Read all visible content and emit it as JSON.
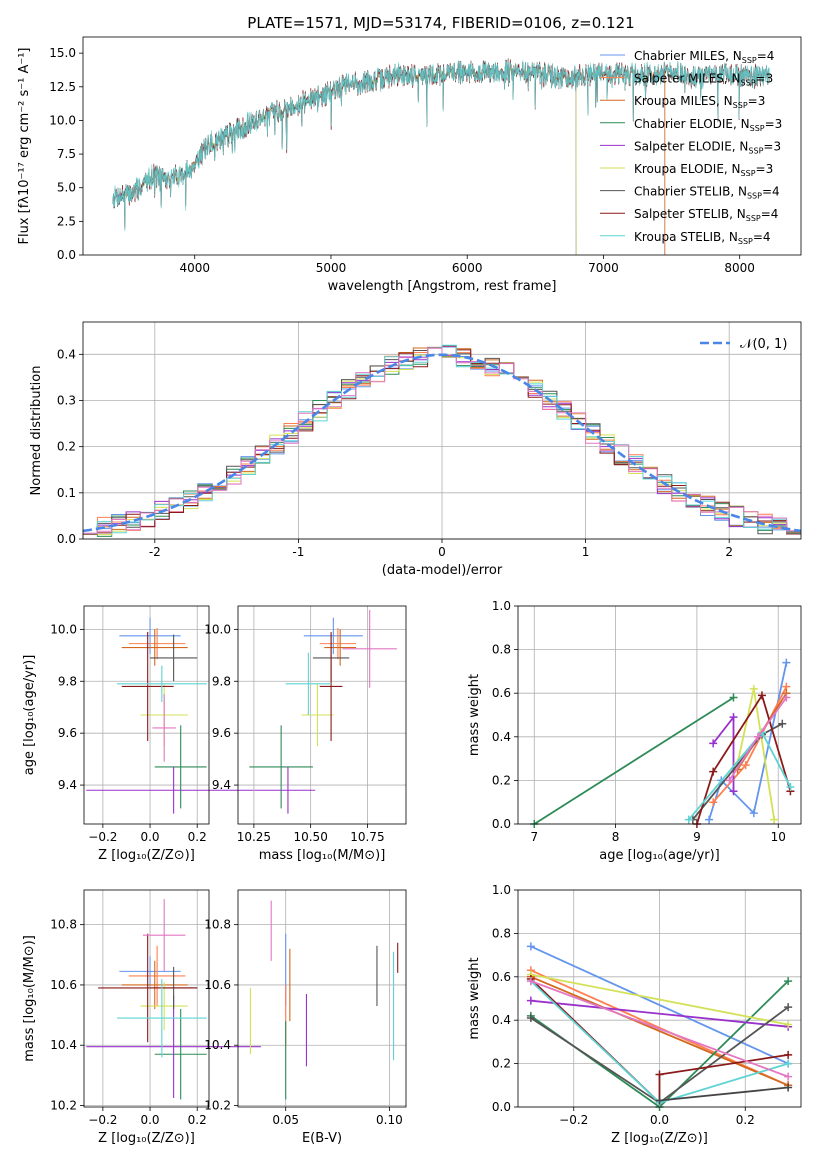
{
  "figure_title": "PLATE=1571, MJD=53174, FIBERID=0106, z=0.121",
  "chart_data": [
    {
      "id": "spectrum",
      "type": "line",
      "title": "PLATE=1571, MJD=53174, FIBERID=0106, z=0.121",
      "xlabel": "wavelength [Angstrom, rest frame]",
      "ylabel": "Flux [fλ10⁻¹⁷ erg cm⁻² s⁻¹ A⁻¹]",
      "xlim": [
        3180,
        8450
      ],
      "ylim": [
        0,
        16.2
      ],
      "xticks": [
        4000,
        5000,
        6000,
        7000,
        8000
      ],
      "yticks": [
        0.0,
        2.5,
        5.0,
        7.5,
        10.0,
        12.5,
        15.0
      ],
      "grid": false,
      "legend_position": "top-right",
      "data_range": [
        3400,
        8220
      ],
      "continuum": [
        [
          3400,
          4.3
        ],
        [
          3550,
          4.6
        ],
        [
          3700,
          6.0
        ],
        [
          3800,
          5.6
        ],
        [
          3950,
          6.2
        ],
        [
          4100,
          8.2
        ],
        [
          4300,
          9.2
        ],
        [
          4500,
          10.3
        ],
        [
          4700,
          11.0
        ],
        [
          4900,
          11.7
        ],
        [
          5100,
          12.6
        ],
        [
          5300,
          12.9
        ],
        [
          5500,
          13.4
        ],
        [
          5700,
          13.3
        ],
        [
          5900,
          13.6
        ],
        [
          6100,
          13.5
        ],
        [
          6300,
          13.7
        ],
        [
          6500,
          13.5
        ],
        [
          6700,
          13.2
        ],
        [
          6900,
          13.4
        ],
        [
          7100,
          13.5
        ],
        [
          7300,
          13.4
        ],
        [
          7500,
          13.6
        ],
        [
          7700,
          13.2
        ],
        [
          7900,
          13.4
        ],
        [
          8100,
          13.3
        ],
        [
          8220,
          13.2
        ]
      ],
      "series": [
        {
          "name": "Chabrier MILES, N$_{SSP}$=4",
          "label_main": "Chabrier MILES, N",
          "label_sub": "SSP",
          "label_end": "=4",
          "color": "#6495ed",
          "end": 7450
        },
        {
          "name": "Salpeter MILES, N$_{SSP}$=3",
          "label_main": "Salpeter MILES, N",
          "label_sub": "SSP",
          "label_end": "=3",
          "color": "#ff7f50",
          "end": 7450
        },
        {
          "name": "Kroupa MILES, N$_{SSP}$=3",
          "label_main": "Kroupa MILES, N",
          "label_sub": "SSP",
          "label_end": "=3",
          "color": "#d2691e",
          "end": 7450
        },
        {
          "name": "Chabrier ELODIE, N$_{SSP}$=3",
          "label_main": "Chabrier ELODIE, N",
          "label_sub": "SSP",
          "label_end": "=3",
          "color": "#2e8b57",
          "end": 6800
        },
        {
          "name": "Salpeter ELODIE, N$_{SSP}$=3",
          "label_main": "Salpeter ELODIE, N",
          "label_sub": "SSP",
          "label_end": "=3",
          "color": "#9932cc",
          "end": 6800
        },
        {
          "name": "Kroupa ELODIE, N$_{SSP}$=3",
          "label_main": "Kroupa ELODIE, N",
          "label_sub": "SSP",
          "label_end": "=3",
          "color": "#d4e157",
          "end": 6800
        },
        {
          "name": "Chabrier STELIB, N$_{SSP}$=4",
          "label_main": "Chabrier STELIB, N",
          "label_sub": "SSP",
          "label_end": "=4",
          "color": "#555555",
          "end": 8220
        },
        {
          "name": "Salpeter STELIB, N$_{SSP}$=4",
          "label_main": "Salpeter STELIB, N",
          "label_sub": "SSP",
          "label_end": "=4",
          "color": "#8b1a1a",
          "end": 8220
        },
        {
          "name": "Kroupa STELIB, N$_{SSP}$=4",
          "label_main": "Kroupa STELIB, N",
          "label_sub": "SSP",
          "label_end": "=4",
          "color": "#5fd3d3",
          "end": 8220
        }
      ]
    },
    {
      "id": "residuals",
      "type": "line",
      "xlabel": "(data-model)/error",
      "ylabel": "Normed distribution",
      "xlim": [
        -2.5,
        2.5
      ],
      "ylim": [
        0,
        0.47
      ],
      "xticks": [
        -2,
        -1,
        0,
        1,
        2
      ],
      "yticks": [
        0.0,
        0.1,
        0.2,
        0.3,
        0.4
      ],
      "grid": true,
      "legend_position": "top-right",
      "reference_curve": {
        "name": "$\\mathcal{N}(0,1)$",
        "label": "𝒩(0, 1)",
        "color": "#4a86e8",
        "mean": 0,
        "sigma": 1
      },
      "bin_width": 0.1,
      "histogram_series_colors": [
        "#6495ed",
        "#ff7f50",
        "#d2691e",
        "#2e8b57",
        "#9932cc",
        "#d4e157",
        "#555555",
        "#8b1a1a",
        "#5fd3d3",
        "#e377c2"
      ]
    },
    {
      "id": "age_vs_Z",
      "type": "scatter",
      "xlabel": "Z [log₁₀(Z/Z⊙)]",
      "ylabel": "age  [log₁₀(age/yr)]",
      "xlim": [
        -0.28,
        0.25
      ],
      "ylim": [
        9.25,
        10.09
      ],
      "xticks": [
        -0.2,
        0.0,
        0.2
      ],
      "xtick_labels": [
        "−0.2",
        "0.0",
        "0.2"
      ],
      "yticks": [
        9.4,
        9.6,
        9.8,
        10.0
      ],
      "grid": true,
      "points": [
        {
          "x": 0.0,
          "y": 9.975,
          "xerr": 0.13,
          "yerr": 0.07,
          "color": "#6495ed"
        },
        {
          "x": 0.03,
          "y": 9.945,
          "xerr": 0.12,
          "yerr": 0.06,
          "color": "#ff7f50"
        },
        {
          "x": 0.02,
          "y": 9.93,
          "xerr": 0.14,
          "yerr": 0.07,
          "color": "#d2691e"
        },
        {
          "x": 0.13,
          "y": 9.47,
          "xerr": 0.11,
          "yerr": 0.16,
          "color": "#2e8b57"
        },
        {
          "x": 0.1,
          "y": 9.38,
          "xerr": 0.37,
          "yerr": 0.09,
          "color": "#9932cc"
        },
        {
          "x": 0.06,
          "y": 9.67,
          "xerr": 0.1,
          "yerr": 0.12,
          "color": "#d4e157"
        },
        {
          "x": 0.1,
          "y": 9.89,
          "xerr": 0.1,
          "yerr": 0.09,
          "color": "#555555"
        },
        {
          "x": -0.01,
          "y": 9.78,
          "xerr": 0.11,
          "yerr": 0.21,
          "color": "#8b1a1a"
        },
        {
          "x": 0.05,
          "y": 9.79,
          "xerr": 0.19,
          "yerr": 0.07,
          "color": "#5fd3d3"
        },
        {
          "x": 0.06,
          "y": 9.62,
          "xerr": 0.05,
          "yerr": 0.13,
          "color": "#e377c2"
        }
      ]
    },
    {
      "id": "age_vs_mass",
      "type": "scatter",
      "xlabel": "mass [log₁₀(M/M⊙)]",
      "ylabel": "",
      "xlim": [
        10.18,
        10.92
      ],
      "ylim": [
        9.25,
        10.09
      ],
      "xticks": [
        10.25,
        10.5,
        10.75
      ],
      "xtick_labels": [
        "10.25",
        "10.50",
        "10.75"
      ],
      "yticks": [
        9.4,
        9.6,
        9.8,
        10.0
      ],
      "grid": true,
      "points": [
        {
          "x": 10.6,
          "y": 9.975,
          "xerr": 0.13,
          "yerr": 0.07,
          "color": "#6495ed"
        },
        {
          "x": 10.62,
          "y": 9.945,
          "xerr": 0.08,
          "yerr": 0.06,
          "color": "#ff7f50"
        },
        {
          "x": 10.63,
          "y": 9.93,
          "xerr": 0.07,
          "yerr": 0.07,
          "color": "#d2691e"
        },
        {
          "x": 10.37,
          "y": 9.47,
          "xerr": 0.14,
          "yerr": 0.16,
          "color": "#2e8b57"
        },
        {
          "x": 10.4,
          "y": 9.38,
          "xerr": 0.12,
          "yerr": 0.09,
          "color": "#9932cc"
        },
        {
          "x": 10.53,
          "y": 9.67,
          "xerr": 0.07,
          "yerr": 0.12,
          "color": "#d4e157"
        },
        {
          "x": 10.59,
          "y": 9.89,
          "xerr": 0.08,
          "yerr": 0.09,
          "color": "#555555"
        },
        {
          "x": 10.59,
          "y": 9.78,
          "xerr": 0.05,
          "yerr": 0.21,
          "color": "#8b1a1a"
        },
        {
          "x": 10.49,
          "y": 9.79,
          "xerr": 0.1,
          "yerr": 0.12,
          "color": "#5fd3d3"
        },
        {
          "x": 10.76,
          "y": 9.925,
          "xerr": 0.12,
          "yerr": 0.15,
          "color": "#e377c2"
        }
      ]
    },
    {
      "id": "weight_vs_age",
      "type": "line",
      "xlabel": "age  [log₁₀(age/yr)]",
      "ylabel": "mass weight",
      "xlim": [
        6.8,
        10.28
      ],
      "ylim": [
        0,
        1.0
      ],
      "xticks": [
        7,
        8,
        9,
        10
      ],
      "yticks": [
        0.0,
        0.2,
        0.4,
        0.6,
        0.8,
        1.0
      ],
      "grid": true,
      "series": [
        {
          "color": "#6495ed",
          "x": [
            9.15,
            9.3,
            9.7,
            10.1
          ],
          "y": [
            0.02,
            0.2,
            0.05,
            0.74
          ]
        },
        {
          "color": "#ff7f50",
          "x": [
            9.2,
            9.6,
            10.1
          ],
          "y": [
            0.1,
            0.27,
            0.63
          ]
        },
        {
          "color": "#d2691e",
          "x": [
            9.5,
            10.1
          ],
          "y": [
            0.25,
            0.6
          ]
        },
        {
          "color": "#2e8b57",
          "x": [
            7.0,
            9.45
          ],
          "y": [
            0.0,
            0.58
          ]
        },
        {
          "color": "#9932cc",
          "x": [
            9.2,
            9.45,
            9.45
          ],
          "y": [
            0.37,
            0.49,
            0.15
          ]
        },
        {
          "color": "#d4e157",
          "x": [
            9.5,
            9.7,
            9.95
          ],
          "y": [
            0.28,
            0.62,
            0.02
          ]
        },
        {
          "color": "#555555",
          "x": [
            8.95,
            9.8,
            10.05
          ],
          "y": [
            0.02,
            0.41,
            0.46
          ]
        },
        {
          "color": "#8b1a1a",
          "x": [
            9.0,
            9.2,
            9.8,
            10.15
          ],
          "y": [
            0.0,
            0.24,
            0.59,
            0.15
          ]
        },
        {
          "color": "#5fd3d3",
          "x": [
            8.9,
            9.8,
            10.15
          ],
          "y": [
            0.02,
            0.42,
            0.17
          ]
        },
        {
          "color": "#e377c2",
          "x": [
            9.4,
            9.75,
            10.1
          ],
          "y": [
            0.2,
            0.4,
            0.58
          ]
        }
      ]
    },
    {
      "id": "mass_vs_Z",
      "type": "scatter",
      "xlabel": "Z [log₁₀(Z/Z⊙)]",
      "ylabel": "mass [log₁₀(M/M⊙)]",
      "xlim": [
        -0.28,
        0.25
      ],
      "ylim": [
        10.195,
        10.915
      ],
      "xticks": [
        -0.2,
        0.0,
        0.2
      ],
      "xtick_labels": [
        "−0.2",
        "0.0",
        "0.2"
      ],
      "yticks": [
        10.2,
        10.4,
        10.6,
        10.8
      ],
      "grid": true,
      "points": [
        {
          "x": 0.0,
          "y": 10.645,
          "xerr": 0.13,
          "yerr": 0.05,
          "color": "#6495ed"
        },
        {
          "x": 0.03,
          "y": 10.63,
          "xerr": 0.12,
          "yerr": 0.1,
          "color": "#ff7f50"
        },
        {
          "x": 0.02,
          "y": 10.6,
          "xerr": 0.14,
          "yerr": 0.08,
          "color": "#d2691e"
        },
        {
          "x": 0.13,
          "y": 10.37,
          "xerr": 0.11,
          "yerr": 0.15,
          "color": "#2e8b57"
        },
        {
          "x": 0.1,
          "y": 10.395,
          "xerr": 0.37,
          "yerr": 0.17,
          "color": "#9932cc"
        },
        {
          "x": 0.06,
          "y": 10.53,
          "xerr": 0.1,
          "yerr": 0.08,
          "color": "#d4e157"
        },
        {
          "x": 0.1,
          "y": 10.59,
          "xerr": 0.1,
          "yerr": 0.07,
          "color": "#555555"
        },
        {
          "x": -0.01,
          "y": 10.59,
          "xerr": 0.21,
          "yerr": 0.18,
          "color": "#8b1a1a"
        },
        {
          "x": 0.05,
          "y": 10.49,
          "xerr": 0.19,
          "yerr": 0.13,
          "color": "#5fd3d3"
        },
        {
          "x": 0.06,
          "y": 10.765,
          "xerr": 0.09,
          "yerr": 0.12,
          "color": "#e377c2"
        }
      ]
    },
    {
      "id": "mass_vs_ebv",
      "type": "scatter",
      "xlabel": "E(B-V)",
      "ylabel": "",
      "xlim": [
        0.027,
        0.108
      ],
      "ylim": [
        10.195,
        10.915
      ],
      "xticks": [
        0.05,
        0.1
      ],
      "xtick_labels": [
        "0.05",
        "0.10"
      ],
      "yticks": [
        10.2,
        10.4,
        10.6,
        10.8
      ],
      "grid": true,
      "points": [
        {
          "x": 0.05,
          "y": 10.65,
          "yerr": 0.12,
          "color": "#6495ed"
        },
        {
          "x": 0.05,
          "y": 10.5,
          "yerr": 0.1,
          "color": "#ff7f50"
        },
        {
          "x": 0.052,
          "y": 10.6,
          "yerr": 0.12,
          "color": "#d2691e"
        },
        {
          "x": 0.05,
          "y": 10.35,
          "yerr": 0.13,
          "color": "#2e8b57"
        },
        {
          "x": 0.06,
          "y": 10.45,
          "yerr": 0.12,
          "color": "#9932cc"
        },
        {
          "x": 0.033,
          "y": 10.48,
          "yerr": 0.11,
          "color": "#d4e157"
        },
        {
          "x": 0.094,
          "y": 10.63,
          "yerr": 0.1,
          "color": "#555555"
        },
        {
          "x": 0.104,
          "y": 10.69,
          "yerr": 0.05,
          "color": "#8b1a1a"
        },
        {
          "x": 0.102,
          "y": 10.53,
          "yerr": 0.18,
          "color": "#5fd3d3"
        },
        {
          "x": 0.043,
          "y": 10.78,
          "yerr": 0.1,
          "color": "#e377c2"
        }
      ]
    },
    {
      "id": "weight_vs_Z",
      "type": "line",
      "xlabel": "Z [log₁₀(Z/Z⊙)]",
      "ylabel": "mass weight",
      "xlim": [
        -0.33,
        0.33
      ],
      "ylim": [
        0,
        1.0
      ],
      "xticks": [
        -0.2,
        0.0,
        0.2
      ],
      "xtick_labels": [
        "−0.2",
        "0.0",
        "0.2"
      ],
      "yticks": [
        0.0,
        0.2,
        0.4,
        0.6,
        0.8,
        1.0
      ],
      "grid": true,
      "series": [
        {
          "color": "#6495ed",
          "x": [
            -0.3,
            0.3
          ],
          "y": [
            0.74,
            0.2
          ]
        },
        {
          "color": "#ff7f50",
          "x": [
            -0.3,
            0.3
          ],
          "y": [
            0.63,
            0.1
          ]
        },
        {
          "color": "#d2691e",
          "x": [
            -0.3,
            0.3
          ],
          "y": [
            0.6,
            0.1
          ]
        },
        {
          "color": "#2e8b57",
          "x": [
            -0.3,
            0.0,
            0.3
          ],
          "y": [
            0.42,
            0.0,
            0.58
          ]
        },
        {
          "color": "#9932cc",
          "x": [
            -0.3,
            0.3
          ],
          "y": [
            0.49,
            0.37
          ]
        },
        {
          "color": "#d4e157",
          "x": [
            -0.3,
            0.3
          ],
          "y": [
            0.61,
            0.38
          ]
        },
        {
          "color": "#555555",
          "x": [
            -0.3,
            0.0,
            0.3
          ],
          "y": [
            0.41,
            0.02,
            0.46
          ]
        },
        {
          "color": "#8b1a1a",
          "x": [
            -0.3,
            0.0,
            0.0,
            0.3
          ],
          "y": [
            0.59,
            0.02,
            0.15,
            0.24
          ]
        },
        {
          "color": "#5fd3d3",
          "x": [
            -0.3,
            0.0,
            0.3
          ],
          "y": [
            0.58,
            0.02,
            0.2
          ]
        },
        {
          "color": "#444444",
          "x": [
            0.0,
            0.3
          ],
          "y": [
            0.03,
            0.09
          ]
        },
        {
          "color": "#e377c2",
          "x": [
            -0.3,
            0.3
          ],
          "y": [
            0.58,
            0.14
          ]
        }
      ]
    }
  ]
}
